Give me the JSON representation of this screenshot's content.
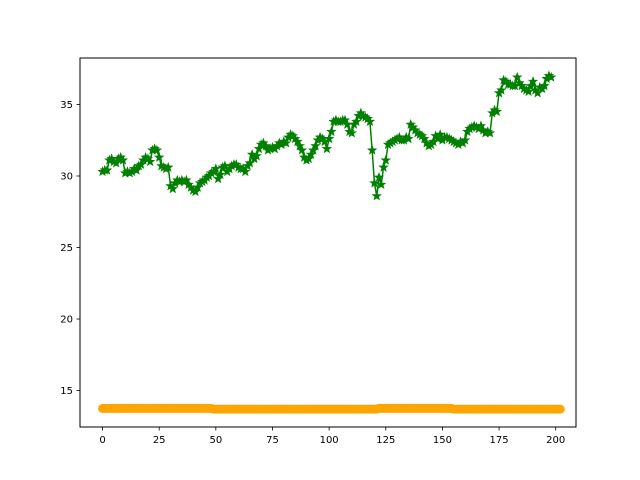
{
  "chart_data": {
    "type": "line",
    "title": "",
    "xlabel": "",
    "ylabel": "",
    "xlim": [
      -9.95,
      208.95
    ],
    "ylim": [
      12.45,
      38.25
    ],
    "xticks": [
      0,
      25,
      50,
      75,
      100,
      125,
      150,
      175,
      200
    ],
    "yticks": [
      15,
      20,
      25,
      30,
      35
    ],
    "grid": false,
    "legend": "none",
    "series": [
      {
        "color": "#008000",
        "marker": "star",
        "line": true,
        "x_start": 0,
        "x_step": 1,
        "y": [
          30.3,
          30.4,
          30.4,
          31.1,
          31.2,
          31.0,
          30.9,
          31.2,
          31.3,
          31.1,
          30.2,
          30.3,
          30.2,
          30.3,
          30.5,
          30.4,
          30.7,
          30.8,
          31.1,
          31.3,
          31.2,
          31.0,
          31.8,
          31.9,
          31.8,
          31.3,
          30.7,
          30.6,
          30.5,
          30.6,
          29.3,
          29.1,
          29.5,
          29.7,
          29.6,
          29.7,
          29.6,
          29.7,
          29.4,
          29.2,
          29.0,
          28.9,
          29.2,
          29.5,
          29.6,
          29.7,
          29.9,
          30.0,
          30.2,
          30.3,
          30.5,
          29.8,
          30.1,
          30.6,
          30.7,
          30.3,
          30.5,
          30.7,
          30.8,
          30.8,
          30.6,
          30.5,
          30.5,
          30.3,
          30.7,
          30.9,
          31.5,
          31.2,
          31.4,
          31.9,
          32.2,
          32.3,
          32.1,
          31.8,
          31.9,
          32.0,
          31.9,
          32.1,
          32.3,
          32.2,
          32.4,
          32.3,
          32.7,
          32.9,
          32.8,
          32.6,
          32.4,
          32.1,
          31.8,
          31.3,
          31.1,
          31.2,
          31.5,
          31.8,
          32.1,
          32.5,
          32.7,
          32.6,
          32.4,
          31.9,
          32.6,
          33.1,
          33.8,
          33.9,
          33.8,
          33.8,
          33.9,
          33.9,
          33.6,
          33.1,
          33.0,
          33.6,
          33.8,
          34.2,
          34.4,
          34.2,
          34.1,
          34.0,
          33.8,
          31.8,
          29.5,
          28.6,
          29.9,
          29.4,
          30.6,
          31.1,
          32.2,
          32.3,
          32.4,
          32.5,
          32.6,
          32.7,
          32.5,
          32.5,
          32.7,
          32.6,
          33.6,
          33.4,
          33.2,
          33.0,
          32.9,
          32.8,
          32.6,
          32.3,
          32.1,
          32.2,
          32.4,
          32.8,
          32.6,
          32.9,
          32.5,
          32.7,
          32.7,
          32.6,
          32.5,
          32.4,
          32.3,
          32.2,
          32.4,
          32.3,
          32.5,
          33.1,
          33.3,
          33.4,
          33.5,
          33.4,
          33.3,
          33.5,
          33.2,
          33.0,
          33.1,
          33.0,
          34.4,
          34.6,
          34.5,
          35.8,
          36.0,
          36.7,
          36.6,
          36.4,
          36.4,
          36.3,
          36.3,
          36.9,
          36.5,
          36.3,
          36.1,
          36.0,
          35.9,
          36.3,
          36.6,
          36.0,
          35.8,
          36.2,
          36.1,
          36.3,
          36.8,
          37.0,
          36.9
        ]
      },
      {
        "color": "#ffa500",
        "marker": "circle",
        "line": false,
        "x_start": 0,
        "x_step": 1,
        "y": [
          13.75,
          13.75,
          13.75,
          13.75,
          13.75,
          13.75,
          13.75,
          13.75,
          13.75,
          13.75,
          13.75,
          13.75,
          13.75,
          13.75,
          13.75,
          13.75,
          13.75,
          13.75,
          13.75,
          13.75,
          13.75,
          13.75,
          13.75,
          13.75,
          13.75,
          13.75,
          13.75,
          13.75,
          13.75,
          13.75,
          13.75,
          13.75,
          13.75,
          13.75,
          13.75,
          13.75,
          13.75,
          13.75,
          13.75,
          13.75,
          13.75,
          13.75,
          13.75,
          13.75,
          13.75,
          13.75,
          13.75,
          13.75,
          13.75,
          13.7,
          13.7,
          13.7,
          13.7,
          13.7,
          13.7,
          13.7,
          13.7,
          13.7,
          13.7,
          13.7,
          13.7,
          13.7,
          13.7,
          13.7,
          13.7,
          13.7,
          13.7,
          13.7,
          13.7,
          13.7,
          13.7,
          13.7,
          13.7,
          13.7,
          13.7,
          13.7,
          13.7,
          13.7,
          13.7,
          13.7,
          13.7,
          13.7,
          13.7,
          13.7,
          13.7,
          13.7,
          13.7,
          13.7,
          13.7,
          13.7,
          13.7,
          13.7,
          13.7,
          13.7,
          13.7,
          13.7,
          13.7,
          13.7,
          13.7,
          13.7,
          13.7,
          13.7,
          13.7,
          13.7,
          13.7,
          13.7,
          13.7,
          13.7,
          13.7,
          13.7,
          13.7,
          13.7,
          13.7,
          13.7,
          13.7,
          13.7,
          13.7,
          13.7,
          13.7,
          13.7,
          13.7,
          13.7,
          13.75,
          13.75,
          13.75,
          13.75,
          13.75,
          13.75,
          13.75,
          13.75,
          13.75,
          13.75,
          13.75,
          13.75,
          13.75,
          13.75,
          13.75,
          13.75,
          13.75,
          13.75,
          13.75,
          13.75,
          13.75,
          13.75,
          13.75,
          13.75,
          13.75,
          13.75,
          13.75,
          13.75,
          13.75,
          13.75,
          13.75,
          13.75,
          13.75,
          13.7,
          13.7,
          13.7,
          13.7,
          13.7,
          13.7,
          13.7,
          13.7,
          13.7,
          13.7,
          13.7,
          13.7,
          13.7,
          13.7,
          13.7,
          13.7,
          13.7,
          13.7,
          13.7,
          13.7,
          13.7,
          13.7,
          13.7,
          13.7,
          13.7,
          13.7,
          13.7,
          13.7,
          13.7,
          13.7,
          13.7,
          13.7,
          13.7,
          13.7,
          13.7,
          13.7,
          13.7,
          13.7,
          13.7,
          13.7,
          13.7,
          13.7,
          13.7,
          13.7,
          13.7,
          13.7,
          13.7,
          13.7
        ]
      }
    ]
  }
}
